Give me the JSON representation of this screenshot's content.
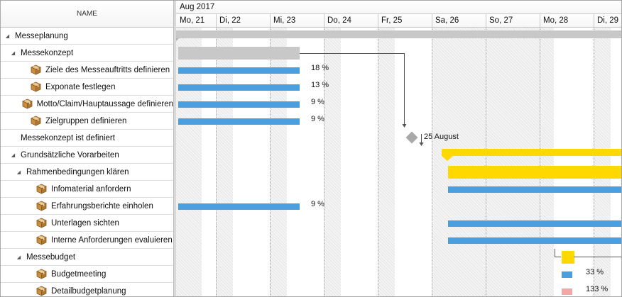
{
  "taskList": {
    "header": "NAME",
    "rows": [
      {
        "name": "Messeplanung",
        "level": 0,
        "expander": true,
        "icon": false
      },
      {
        "name": "Messekonzept",
        "level": 1,
        "expander": true,
        "icon": false
      },
      {
        "name": "Ziele des Messeauftritts definieren",
        "level": 2,
        "expander": false,
        "icon": true
      },
      {
        "name": "Exponate festlegen",
        "level": 2,
        "expander": false,
        "icon": true
      },
      {
        "name": "Motto/Claim/Hauptaussage definieren",
        "level": 2,
        "expander": false,
        "icon": true
      },
      {
        "name": "Zielgruppen definieren",
        "level": 2,
        "expander": false,
        "icon": true
      },
      {
        "name": "Messekonzept ist definiert",
        "level": 1,
        "expander": false,
        "icon": false
      },
      {
        "name": "Grundsätzliche Vorarbeiten",
        "level": 1,
        "expander": true,
        "icon": false
      },
      {
        "name": "Rahmenbedingungen klären",
        "level": 2,
        "expander": true,
        "icon": false
      },
      {
        "name": "Infomaterial anfordern",
        "level": 3,
        "expander": false,
        "icon": true
      },
      {
        "name": "Erfahrungsberichte einholen",
        "level": 3,
        "expander": false,
        "icon": true
      },
      {
        "name": "Unterlagen sichten",
        "level": 3,
        "expander": false,
        "icon": true
      },
      {
        "name": "Interne Anforderungen evaluieren",
        "level": 3,
        "expander": false,
        "icon": true
      },
      {
        "name": "Messebudget",
        "level": 2,
        "expander": true,
        "icon": false
      },
      {
        "name": "Budgetmeeting",
        "level": 3,
        "expander": false,
        "icon": true
      },
      {
        "name": "Detailbudgetplanung",
        "level": 3,
        "expander": false,
        "icon": true
      }
    ]
  },
  "timeline": {
    "month": "Aug 2017",
    "days": [
      "Mo, 21",
      "Di, 22",
      "Mi, 23",
      "Do, 24",
      "Fr, 25",
      "Sa, 26",
      "So, 27",
      "Mo, 28",
      "Di, 29"
    ],
    "milestoneLabel": "25 August",
    "progress": [
      {
        "row": 2,
        "text": "18 %"
      },
      {
        "row": 3,
        "text": "13 %"
      },
      {
        "row": 4,
        "text": "9 %"
      },
      {
        "row": 5,
        "text": "9 %"
      },
      {
        "row": 10,
        "text": "9 %"
      },
      {
        "row": 14,
        "text": "33 %"
      },
      {
        "row": 15,
        "text": "133 %"
      }
    ]
  },
  "colors": {
    "summary": "#c8c8c8",
    "task": "#4a9fe0",
    "critical": "#ffd800",
    "overBudget": "#f4a7a7",
    "milestone": "#a9a9a9",
    "link": "#555555"
  }
}
